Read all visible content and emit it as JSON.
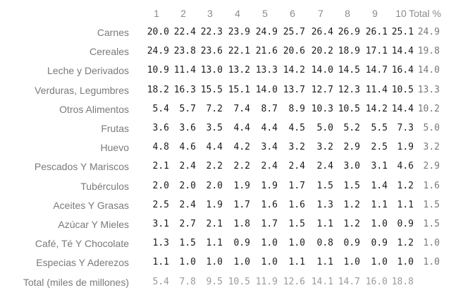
{
  "chart_data": {
    "type": "table",
    "columns": [
      "1",
      "2",
      "3",
      "4",
      "5",
      "6",
      "7",
      "8",
      "9",
      "10"
    ],
    "total_header": "Total %",
    "rows": [
      {
        "label": "Carnes",
        "values": [
          "20.0",
          "22.4",
          "22.3",
          "23.9",
          "24.9",
          "25.7",
          "26.4",
          "26.9",
          "26.1",
          "25.1"
        ],
        "total": "24.9"
      },
      {
        "label": "Cereales",
        "values": [
          "24.9",
          "23.8",
          "23.6",
          "22.1",
          "21.6",
          "20.6",
          "20.2",
          "18.9",
          "17.1",
          "14.4"
        ],
        "total": "19.8"
      },
      {
        "label": "Leche y Derivados",
        "values": [
          "10.9",
          "11.4",
          "13.0",
          "13.2",
          "13.3",
          "14.2",
          "14.0",
          "14.5",
          "14.7",
          "16.4"
        ],
        "total": "14.0"
      },
      {
        "label": "Verduras, Legumbres",
        "values": [
          "18.2",
          "16.3",
          "15.5",
          "15.1",
          "14.0",
          "13.7",
          "12.7",
          "12.3",
          "11.4",
          "10.5"
        ],
        "total": "13.3"
      },
      {
        "label": "Otros Alimentos",
        "values": [
          "5.4",
          "5.7",
          "7.2",
          "7.4",
          "8.7",
          "8.9",
          "10.3",
          "10.5",
          "14.2",
          "14.4"
        ],
        "total": "10.2"
      },
      {
        "label": "Frutas",
        "values": [
          "3.6",
          "3.6",
          "3.5",
          "4.4",
          "4.4",
          "4.5",
          "5.0",
          "5.2",
          "5.5",
          "7.3"
        ],
        "total": "5.0"
      },
      {
        "label": "Huevo",
        "values": [
          "4.8",
          "4.6",
          "4.4",
          "4.2",
          "3.4",
          "3.2",
          "3.2",
          "2.9",
          "2.5",
          "1.9"
        ],
        "total": "3.2"
      },
      {
        "label": "Pescados Y Mariscos",
        "values": [
          "2.1",
          "2.4",
          "2.2",
          "2.2",
          "2.4",
          "2.4",
          "2.4",
          "3.0",
          "3.1",
          "4.6"
        ],
        "total": "2.9"
      },
      {
        "label": "Tubérculos",
        "values": [
          "2.0",
          "2.0",
          "2.0",
          "1.9",
          "1.9",
          "1.7",
          "1.5",
          "1.5",
          "1.4",
          "1.2"
        ],
        "total": "1.6"
      },
      {
        "label": "Aceites Y Grasas",
        "values": [
          "2.5",
          "2.4",
          "1.9",
          "1.7",
          "1.6",
          "1.6",
          "1.3",
          "1.2",
          "1.1",
          "1.1"
        ],
        "total": "1.5"
      },
      {
        "label": "Azúcar Y Mieles",
        "values": [
          "3.1",
          "2.7",
          "2.1",
          "1.8",
          "1.7",
          "1.5",
          "1.1",
          "1.2",
          "1.0",
          "0.9"
        ],
        "total": "1.5"
      },
      {
        "label": "Café, Té Y Chocolate",
        "values": [
          "1.3",
          "1.5",
          "1.1",
          "0.9",
          "1.0",
          "1.0",
          "0.8",
          "0.9",
          "0.9",
          "1.2"
        ],
        "total": "1.0"
      },
      {
        "label": "Especias Y Aderezos",
        "values": [
          "1.1",
          "1.0",
          "1.0",
          "1.0",
          "1.0",
          "1.1",
          "1.1",
          "1.0",
          "1.0",
          "1.0"
        ],
        "total": "1.0"
      }
    ],
    "footer": {
      "label": "Total (miles de millones)",
      "values": [
        "5.4",
        "7.8",
        "9.5",
        "10.5",
        "11.9",
        "12.6",
        "14.1",
        "14.7",
        "16.0",
        "18.8"
      ]
    }
  }
}
